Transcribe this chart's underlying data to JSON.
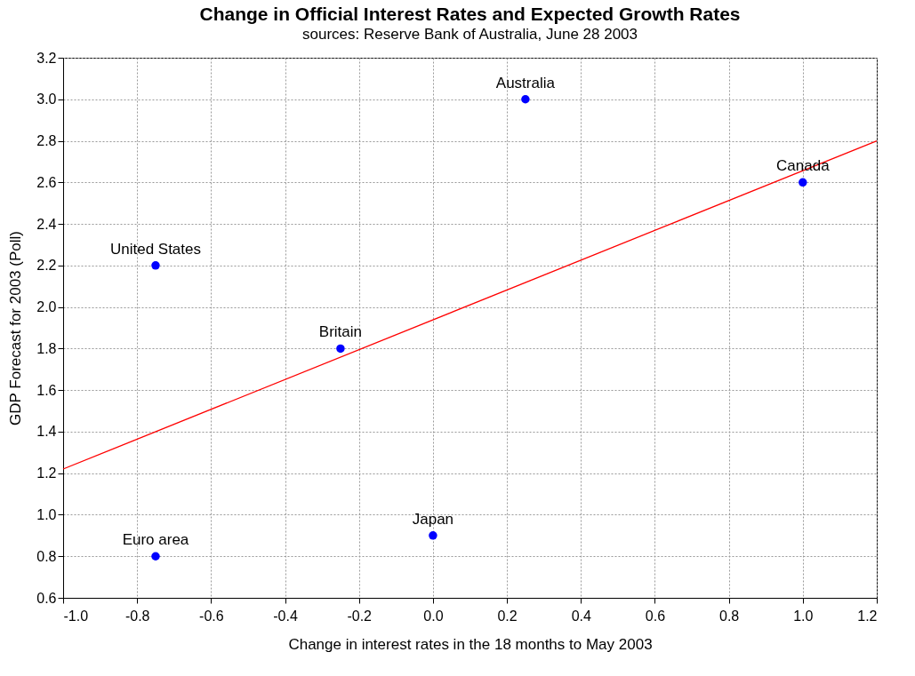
{
  "chart_data": {
    "type": "scatter",
    "title": "Change in Official Interest Rates and Expected Growth Rates",
    "subtitle": "sources: Reserve Bank of Australia, June 28 2003",
    "xlabel": "Change in interest rates in the 18 months to May 2003",
    "ylabel": "GDP Forecast for 2003 (Poll)",
    "series": [
      {
        "color": "#0000ff",
        "marker": "circle",
        "x": [
          -0.75,
          -0.75,
          -0.25,
          0,
          0.25,
          1.0
        ],
        "values": [
          2.2,
          0.8,
          1.8,
          0.9,
          3.0,
          2.6
        ]
      },
      {
        "type": "line",
        "marker": "none",
        "color": "#ff0000",
        "x": [
          -1.0,
          1.2
        ],
        "values": [
          1.22,
          2.8
        ]
      }
    ],
    "annotations": [
      {
        "text": "United States",
        "x": -0.75,
        "y": 2.2
      },
      {
        "text": "Euro area",
        "x": -0.75,
        "y": 0.8
      },
      {
        "text": "Britain",
        "x": -0.25,
        "y": 1.8
      },
      {
        "text": "Japan",
        "x": 0,
        "y": 0.9
      },
      {
        "text": "Australia",
        "x": 0.25,
        "y": 3.0
      },
      {
        "text": "Canada",
        "x": 1.0,
        "y": 2.6
      }
    ],
    "xlim": [
      -1.0,
      1.2
    ],
    "ylim": [
      0.6,
      3.2
    ],
    "xticks": [
      {
        "value": -1,
        "label": "-1.0"
      },
      {
        "value": -0.8,
        "label": "-0.8"
      },
      {
        "value": -0.6,
        "label": "-0.6"
      },
      {
        "value": -0.4,
        "label": "-0.4"
      },
      {
        "value": -0.2,
        "label": "-0.2"
      },
      {
        "value": 0,
        "label": "0.0"
      },
      {
        "value": 0.2,
        "label": "0.2"
      },
      {
        "value": 0.4,
        "label": "0.4"
      },
      {
        "value": 0.6,
        "label": "0.6"
      },
      {
        "value": 0.8,
        "label": "0.8"
      },
      {
        "value": 1,
        "label": "1.0"
      },
      {
        "value": 1.2,
        "label": "1.2"
      }
    ],
    "yticks": [
      {
        "value": 0.6,
        "label": "0.6"
      },
      {
        "value": 0.8,
        "label": "0.8"
      },
      {
        "value": 1,
        "label": "1.0"
      },
      {
        "value": 1.2,
        "label": "1.2"
      },
      {
        "value": 1.4,
        "label": "1.4"
      },
      {
        "value": 1.6,
        "label": "1.6"
      },
      {
        "value": 1.8,
        "label": "1.8"
      },
      {
        "value": 2,
        "label": "2.0"
      },
      {
        "value": 2.2,
        "label": "2.2"
      },
      {
        "value": 2.4,
        "label": "2.4"
      },
      {
        "value": 2.6,
        "label": "2.6"
      },
      {
        "value": 2.8,
        "label": "2.8"
      },
      {
        "value": 3,
        "label": "3.0"
      },
      {
        "value": 3.2,
        "label": "3.2"
      }
    ],
    "grid": true,
    "line_style": "solid"
  }
}
